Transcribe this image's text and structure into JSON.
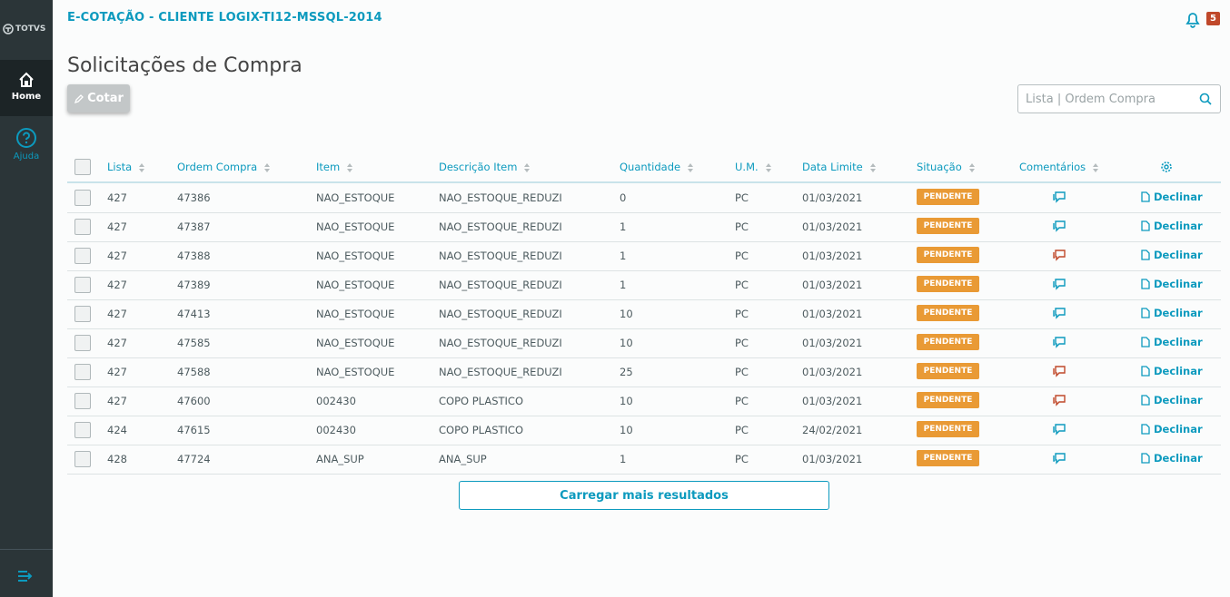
{
  "sidebar": {
    "logo": "TOTVS",
    "menu": [
      "Home",
      "Ajuda"
    ]
  },
  "header": {
    "title": "E-COTAÇÃO - CLIENTE LOGIX-TI12-MSSQL-2014",
    "notifications": 5
  },
  "page": {
    "title": "Solicitações de Compra",
    "button": "Cotar",
    "search_placeholder": "Lista | Ordem Compra"
  },
  "table": {
    "columns": [
      "Lista",
      "Ordem Compra",
      "Item",
      "Descrição Item",
      "Quantidade",
      "U.M.",
      "Data Limite",
      "Situação",
      "Comentários"
    ],
    "rows": [
      [
        427,
        47386,
        "NAO_ESTOQUE",
        "NAO_ESTOQUE_REDUZI",
        0,
        "PC",
        "01/03/2021",
        "PENDENTE",
        "Declinar"
      ],
      [
        427,
        47387,
        "NAO_ESTOQUE",
        "NAO_ESTOQUE_REDUZI",
        1,
        "PC",
        "01/03/2021",
        "PENDENTE",
        "Declinar"
      ],
      [
        427,
        47388,
        "NAO_ESTOQUE",
        "NAO_ESTOQUE_REDUZI",
        1,
        "PC",
        "01/03/2021",
        "PENDENTE",
        "Declinar"
      ],
      [
        427,
        47389,
        "NAO_ESTOQUE",
        "NAO_ESTOQUE_REDUZI",
        1,
        "PC",
        "01/03/2021",
        "PENDENTE",
        "Declinar"
      ],
      [
        427,
        47413,
        "NAO_ESTOQUE",
        "NAO_ESTOQUE_REDUZI",
        10,
        "PC",
        "01/03/2021",
        "PENDENTE",
        "Declinar"
      ],
      [
        427,
        47585,
        "NAO_ESTOQUE",
        "NAO_ESTOQUE_REDUZI",
        10,
        "PC",
        "01/03/2021",
        "PENDENTE",
        "Declinar"
      ],
      [
        427,
        47588,
        "NAO_ESTOQUE",
        "NAO_ESTOQUE_REDUZI",
        25,
        "PC",
        "01/03/2021",
        "PENDENTE",
        "Declinar"
      ],
      [
        427,
        47600,
        "002430",
        "COPO PLASTICO",
        10,
        "PC",
        "01/03/2021",
        "PENDENTE",
        "Declinar"
      ],
      [
        424,
        47615,
        "002430",
        "COPO PLASTICO",
        10,
        "PC",
        "24/02/2021",
        "PENDENTE",
        "Declinar"
      ],
      [
        428,
        47724,
        "ANA_SUP",
        "ANA_SUP",
        1,
        "PC",
        "01/03/2021",
        "PENDENTE",
        "Declinar"
      ]
    ],
    "comment_colors": [
      "#0c9abe",
      "#0c9abe",
      "#c0482a",
      "#0c9abe",
      "#0c9abe",
      "#0c9abe",
      "#c0482a",
      "#c0482a",
      "#0c9abe",
      "#0c9abe"
    ]
  },
  "load_more": "Carregar mais resultados"
}
